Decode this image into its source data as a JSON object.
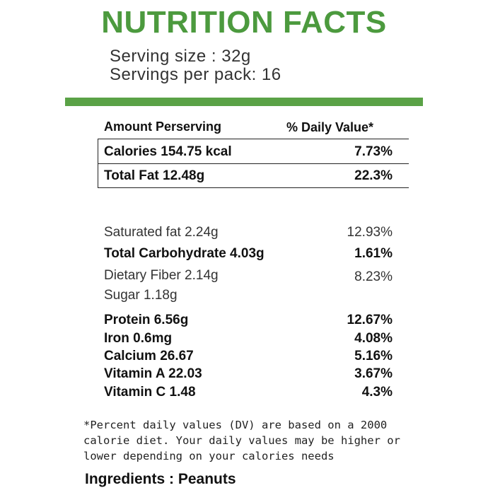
{
  "header": {
    "title": "NUTRITION FACTS",
    "serving_size": "Serving size : 32g",
    "servings_per_pack": "Servings per pack: 16"
  },
  "table": {
    "columns": [
      "Amount Perserving",
      "% Daily Value*"
    ],
    "rows": [
      [
        "Calories 154.75 kcal",
        "7.73%"
      ],
      [
        "Total Fat 12.48g",
        "22.3%"
      ],
      [
        "Saturated fat 2.24g",
        "12.93%"
      ],
      [
        "Total Carbohydrate 4.03g",
        "1.61%"
      ],
      [
        "Dietary Fiber 2.14g",
        "8.23%"
      ],
      [
        "Sugar 1.18g"
      ],
      [
        "Protein 6.56g",
        "12.67%"
      ],
      [
        "Iron 0.6mg",
        "4.08%"
      ],
      [
        "Calcium 26.67",
        "5.16%"
      ],
      [
        "Vitamin A 22.03",
        "3.67%"
      ],
      [
        "Vitamin C 1.48",
        "4.3%"
      ]
    ]
  },
  "footnote": [
    "*Percent daily values (DV) are based on a 2000",
    "calorie diet. Your daily values may be higher or",
    "lower depending on your calories needs"
  ],
  "ingredients": "Ingredients : Peanuts"
}
